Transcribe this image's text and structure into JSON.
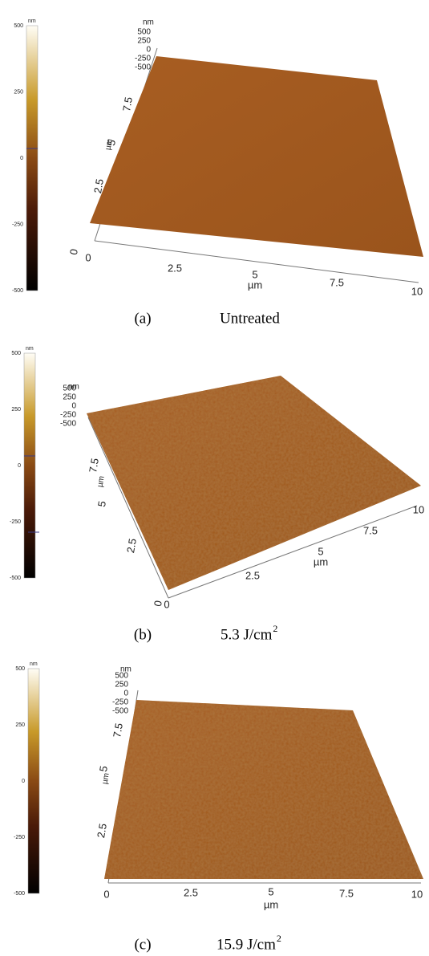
{
  "panels": [
    {
      "colorbar": {
        "unit": "nm",
        "ticks": [
          "500",
          "250",
          "0",
          "-250",
          "-500"
        ]
      },
      "z_axis": {
        "unit": "nm",
        "ticks": [
          "500",
          "250",
          "0",
          "-250",
          "-500"
        ]
      },
      "x_axis": {
        "label": "µm",
        "ticks": [
          "0",
          "2.5",
          "5",
          "7.5",
          "10"
        ]
      },
      "y_axis": {
        "label": "µm",
        "ticks": [
          "0",
          "2.5",
          "5",
          "7.5"
        ]
      },
      "caption": {
        "letter": "(a)",
        "text": "Untreated"
      }
    },
    {
      "colorbar": {
        "unit": "nm",
        "ticks": [
          "500",
          "250",
          "0",
          "-250",
          "-500"
        ]
      },
      "z_axis": {
        "unit": "nm",
        "ticks": [
          "500",
          "250",
          "0",
          "-250",
          "-500"
        ]
      },
      "x_axis": {
        "label": "µm",
        "ticks": [
          "0",
          "2.5",
          "5",
          "7.5",
          "10"
        ]
      },
      "y_axis": {
        "label": "µm",
        "ticks": [
          "0",
          "2.5",
          "5",
          "7.5"
        ]
      },
      "caption": {
        "letter": "(b)",
        "text": "5.3  J/cm",
        "superscript": "2"
      }
    },
    {
      "colorbar": {
        "unit": "nm",
        "ticks": [
          "500",
          "250",
          "0",
          "-250",
          "-500"
        ]
      },
      "z_axis": {
        "unit": "nm",
        "ticks": [
          "500",
          "250",
          "0",
          "-250",
          "-500"
        ]
      },
      "x_axis": {
        "label": "µm",
        "ticks": [
          "0",
          "2.5",
          "5",
          "7.5",
          "10"
        ]
      },
      "y_axis": {
        "label": "µm",
        "ticks": [
          "2.5",
          "5",
          "7.5"
        ]
      },
      "caption": {
        "letter": "(c)",
        "text": "15.9  J/cm",
        "superscript": "2"
      }
    }
  ]
}
